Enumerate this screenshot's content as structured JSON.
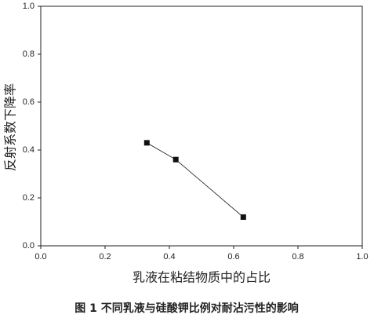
{
  "chart_data": {
    "type": "line",
    "caption": "图 1 不同乳液与硅酸钾比例对耐沾污性的影响",
    "xlabel": "乳液在粘结物质中的占比",
    "ylabel": "反射系数下降率",
    "x": [
      0.33,
      0.42,
      0.63
    ],
    "series": [
      {
        "color": "#111111",
        "values": [
          0.43,
          0.36,
          0.12
        ]
      }
    ],
    "xlim": [
      0,
      1
    ],
    "ylim": [
      0,
      1
    ],
    "xticks": [
      {
        "value": 0,
        "label": "0.0"
      },
      {
        "value": 0.2,
        "label": "0.2"
      },
      {
        "value": 0.4,
        "label": "0.4"
      },
      {
        "value": 0.6,
        "label": "0.6"
      },
      {
        "value": 0.8,
        "label": "0.8"
      },
      {
        "value": 1,
        "label": "1.0"
      }
    ],
    "yticks": [
      {
        "value": 0,
        "label": "0.0"
      },
      {
        "value": 0.2,
        "label": "0.2"
      },
      {
        "value": 0.4,
        "label": "0.4"
      },
      {
        "value": 0.6,
        "label": "0.6"
      },
      {
        "value": 0.8,
        "label": "0.8"
      },
      {
        "value": 1,
        "label": "1.0"
      }
    ]
  }
}
